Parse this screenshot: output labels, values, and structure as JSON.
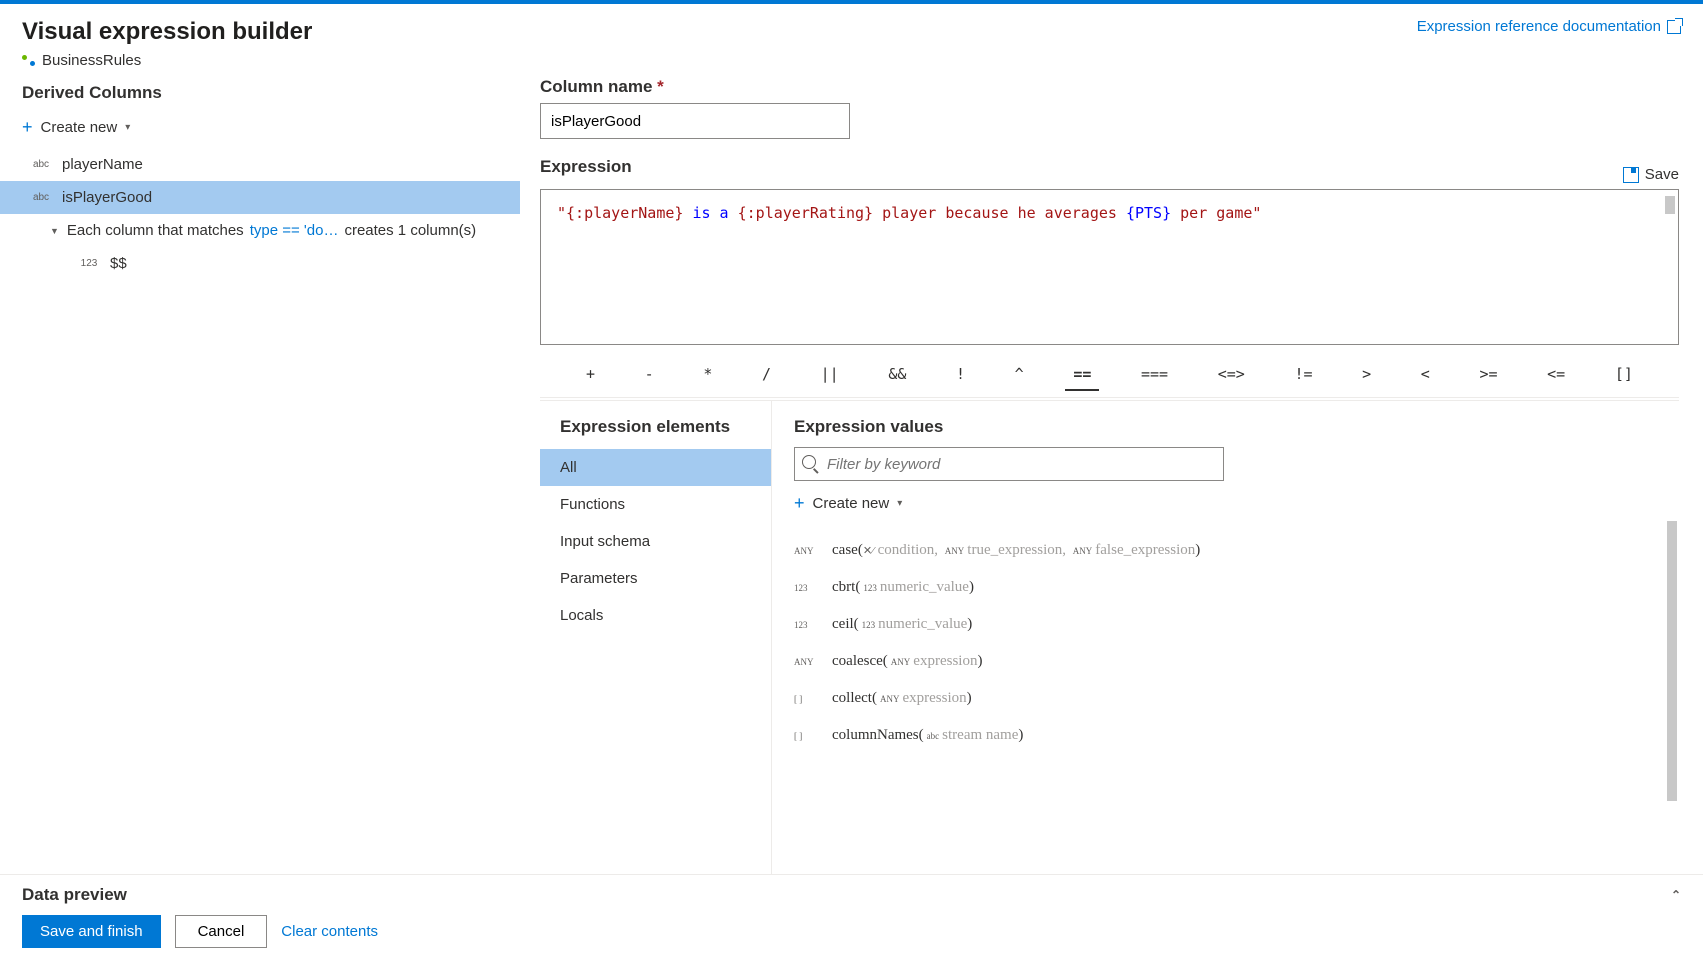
{
  "header": {
    "title": "Visual expression builder",
    "breadcrumb": "BusinessRules",
    "doc_link": "Expression reference documentation"
  },
  "left": {
    "section_title": "Derived Columns",
    "create_new": "Create new",
    "columns": [
      {
        "type": "abc",
        "name": "playerName",
        "selected": false
      },
      {
        "type": "abc",
        "name": "isPlayerGood",
        "selected": true
      }
    ],
    "pattern": {
      "prefix": "Each column that matches",
      "condition": "type == 'do…",
      "suffix": "creates 1 column(s)"
    },
    "sub": {
      "type": "123",
      "name": "$$"
    }
  },
  "form": {
    "column_name_label": "Column name",
    "column_name_value": "isPlayerGood",
    "expression_label": "Expression",
    "save_label": "Save"
  },
  "code": {
    "s1": "\"{:playerName}",
    "s2": " is a ",
    "s3": "{:playerRating}",
    "s4": " player because he averages ",
    "s5": "{PTS}",
    "s6": " per game\""
  },
  "operators": [
    "+",
    "-",
    "*",
    "/",
    "||",
    "&&",
    "!",
    "^",
    "==",
    "===",
    "<=>",
    "!=",
    ">",
    "<",
    ">=",
    "<=",
    "[]"
  ],
  "active_op": "==",
  "elements": {
    "title": "Expression elements",
    "items": [
      "All",
      "Functions",
      "Input schema",
      "Parameters",
      "Locals"
    ],
    "selected": "All"
  },
  "values": {
    "title": "Expression values",
    "filter_placeholder": "Filter by keyword",
    "create_new": "Create new",
    "fns": [
      {
        "ret": "ANY",
        "name": "case",
        "params": [
          {
            "t": "icon",
            "v": "✕⁄"
          },
          {
            "t": "name",
            "v": "condition,"
          },
          {
            "t": "type",
            "v": "ANY"
          },
          {
            "t": "name",
            "v": "true_expression,"
          },
          {
            "t": "type",
            "v": "ANY"
          },
          {
            "t": "name",
            "v": "false_expression"
          }
        ]
      },
      {
        "ret": "123",
        "name": "cbrt",
        "params": [
          {
            "t": "type",
            "v": "123"
          },
          {
            "t": "name",
            "v": "numeric_value"
          }
        ]
      },
      {
        "ret": "123",
        "name": "ceil",
        "params": [
          {
            "t": "type",
            "v": "123"
          },
          {
            "t": "name",
            "v": "numeric_value"
          }
        ]
      },
      {
        "ret": "ANY",
        "name": "coalesce",
        "params": [
          {
            "t": "type",
            "v": "ANY"
          },
          {
            "t": "name",
            "v": "expression"
          }
        ]
      },
      {
        "ret": "[ ]",
        "name": "collect",
        "params": [
          {
            "t": "type",
            "v": "ANY"
          },
          {
            "t": "name",
            "v": "expression"
          }
        ]
      },
      {
        "ret": "[ ]",
        "name": "columnNames",
        "params": [
          {
            "t": "type",
            "v": "abc"
          },
          {
            "t": "name",
            "v": "stream name"
          }
        ]
      }
    ]
  },
  "footer": {
    "preview": "Data preview",
    "save_finish": "Save and finish",
    "cancel": "Cancel",
    "clear": "Clear contents"
  }
}
